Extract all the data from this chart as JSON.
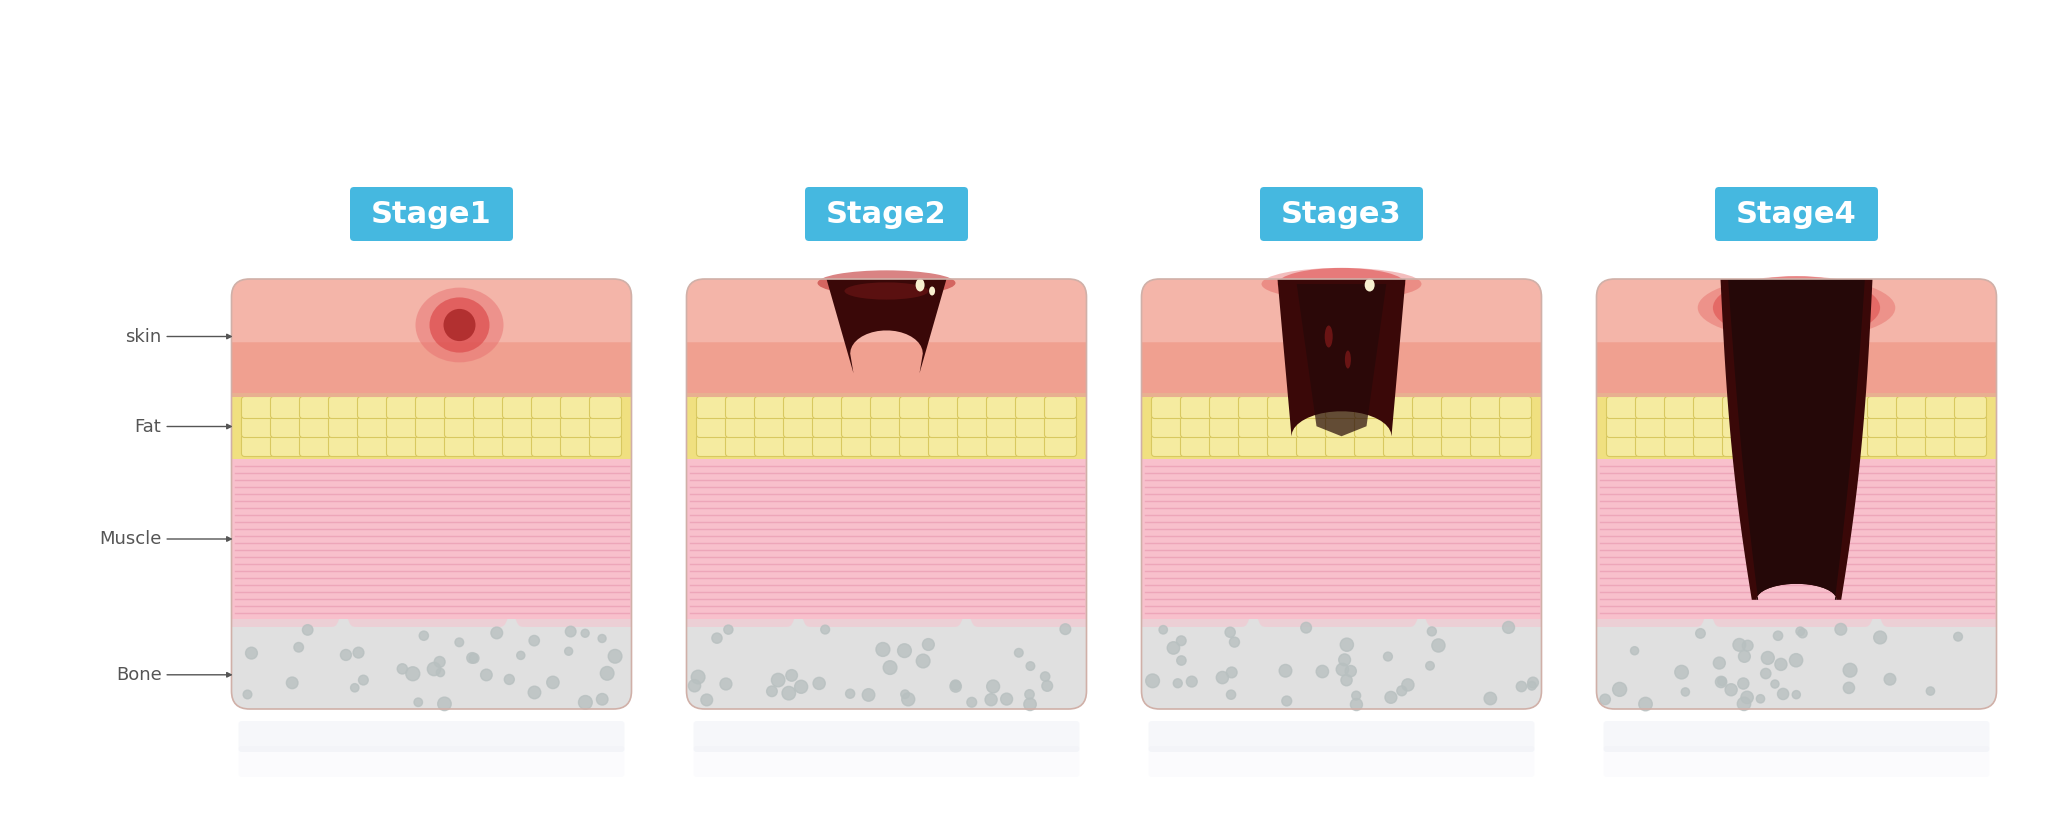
{
  "background_color": "#ffffff",
  "stage_labels": [
    "Stage1",
    "Stage2",
    "Stage3",
    "Stage4"
  ],
  "stage_label_bg": "#45b8e0",
  "stage_label_color": "#ffffff",
  "stage_label_fontsize": 22,
  "layer_label_color": "#555555",
  "layer_label_fontsize": 13,
  "skin_color": "#f0a090",
  "skin_light": "#f8c8be",
  "skin_dark": "#e08878",
  "fat_bg_color": "#f0e080",
  "fat_cell_color": "#d8c860",
  "fat_cell_fill": "#f5eba0",
  "muscle_color": "#f8c0cc",
  "muscle_line_color": "#e898b0",
  "bone_color": "#d0d0d0",
  "bone_bg": "#e0e0e0",
  "bone_dot_color": "#b8c0c0",
  "wound_very_dark": "#250808",
  "wound_dark": "#3a0808",
  "wound_mid": "#7a1818",
  "wound_red": "#c03030",
  "wound_bright_red": "#dd4444",
  "fluid_color": "#f8f0d0",
  "stage1_outer": "#dd5050",
  "stage1_inner": "#aa2828"
}
